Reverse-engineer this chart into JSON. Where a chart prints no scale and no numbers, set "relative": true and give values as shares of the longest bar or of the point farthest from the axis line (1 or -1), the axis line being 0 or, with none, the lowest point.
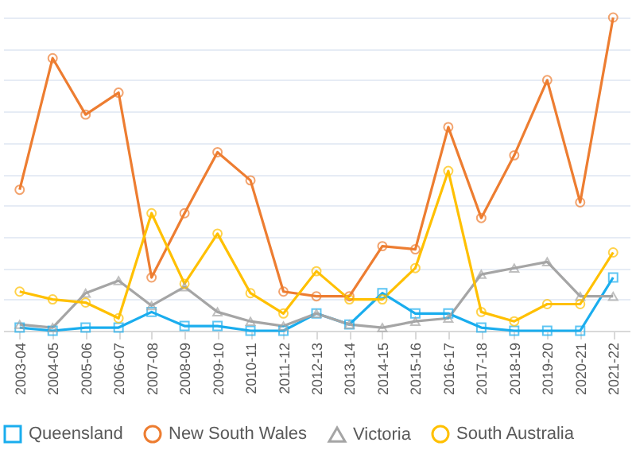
{
  "chart_data": {
    "type": "line",
    "relative": true,
    "grid": "y",
    "legend": "bottom",
    "line_style": "solid",
    "categories": [
      "2003-04",
      "2004-05",
      "2005-06",
      "2006-07",
      "2007-08",
      "2008-09",
      "2009-10",
      "2010-11",
      "2011-12",
      "2012-13",
      "2013-14",
      "2014-15",
      "2015-16",
      "2016-17",
      "2017-18",
      "2018-19",
      "2019-20",
      "2020-21",
      "2021-22"
    ],
    "series": [
      {
        "name": "Queensland",
        "color": "#1aadee",
        "marker": "square",
        "values": [
          0.01,
          0.0,
          0.01,
          0.01,
          0.06,
          0.015,
          0.015,
          0.0,
          0.0,
          0.055,
          0.02,
          0.12,
          0.055,
          0.055,
          0.01,
          0.0,
          0.0,
          0.0,
          0.17
        ]
      },
      {
        "name": "New South Wales",
        "color": "#ed7d31",
        "marker": "circle",
        "values": [
          0.45,
          0.87,
          0.69,
          0.76,
          0.17,
          0.375,
          0.57,
          0.48,
          0.125,
          0.11,
          0.11,
          0.27,
          0.26,
          0.65,
          0.36,
          0.56,
          0.8,
          0.41,
          1.0
        ]
      },
      {
        "name": "Victoria",
        "color": "#a5a5a5",
        "marker": "triangle",
        "values": [
          0.02,
          0.01,
          0.12,
          0.16,
          0.08,
          0.14,
          0.06,
          0.03,
          0.015,
          0.055,
          0.02,
          0.01,
          0.03,
          0.04,
          0.18,
          0.2,
          0.22,
          0.11,
          0.11
        ]
      },
      {
        "name": "South Australia",
        "color": "#ffc000",
        "marker": "circle",
        "values": [
          0.125,
          0.1,
          0.09,
          0.04,
          0.375,
          0.15,
          0.31,
          0.12,
          0.055,
          0.19,
          0.1,
          0.1,
          0.2,
          0.51,
          0.06,
          0.03,
          0.085,
          0.085,
          0.25
        ]
      }
    ]
  }
}
